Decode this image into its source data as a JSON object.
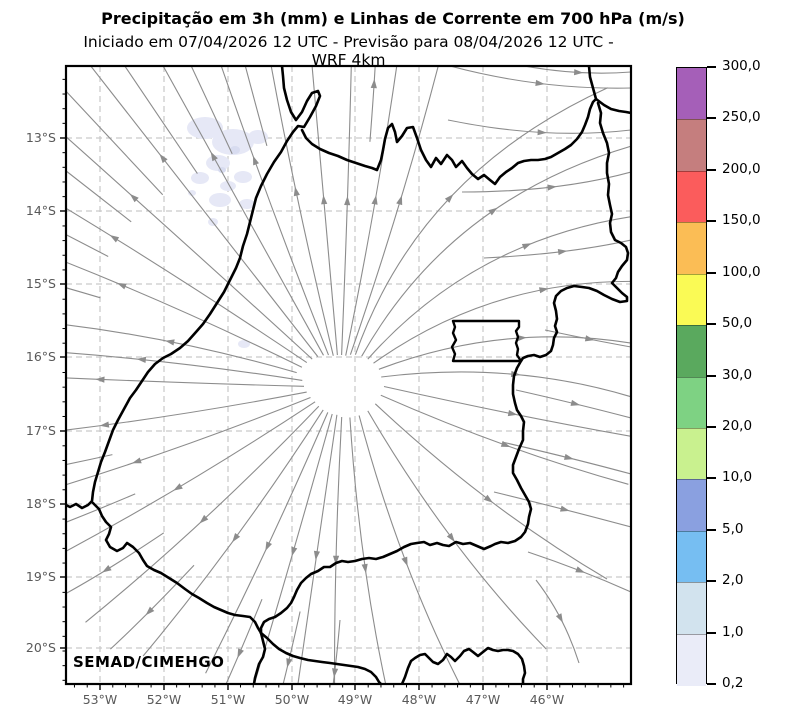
{
  "header": {
    "title": "Precipitação em 3h (mm) e Linhas de Corrente em 700 hPa (m/s)",
    "subtitle": "Iniciado em 07/04/2026 12 UTC - Previsão para 08/04/2026 12 UTC - WRF 4km"
  },
  "map": {
    "watermark": "SEMAD/CIMEHGO",
    "lat_tick_labels": [
      "13°S",
      "14°S",
      "15°S",
      "16°S",
      "17°S",
      "18°S",
      "19°S",
      "20°S"
    ],
    "lon_tick_labels": [
      "53°W",
      "52°W",
      "51°W",
      "50°W",
      "49°W",
      "48°W",
      "47°W",
      "46°W"
    ],
    "colors": {
      "state_border": "#000000",
      "streamline": "#8c8c8c",
      "grid": "#c9c9c9",
      "precip_patch_light": "#e6e8f6",
      "precip_patch_dot": "#d8dcf0",
      "tick_label": "#595959",
      "background": "#ffffff"
    }
  },
  "colorbar": {
    "tick_labels_top_to_bottom": [
      "300,0",
      "250,0",
      "200,0",
      "150,0",
      "100,0",
      "50,0",
      "30,0",
      "20,0",
      "10,0",
      "5,0",
      "2,0",
      "1,0",
      "0,2"
    ],
    "segment_colors_top_to_bottom": [
      "#a55fb8",
      "#c57e7e",
      "#fb5c5c",
      "#fbbd55",
      "#fafa55",
      "#5aa95e",
      "#7ed283",
      "#c9f18f",
      "#8aa0e0",
      "#76bef2",
      "#d2e3ee",
      "#eaecf8"
    ]
  },
  "chart_data": {
    "type": "map",
    "title": "Precipitação em 3h (mm) e Linhas de Corrente em 700 hPa (m/s)",
    "subtitle": "Iniciado em 07/04/2026 12 UTC - Previsão para 08/04/2026 12 UTC - WRF 4km",
    "xlabel_ticks_deg_W": [
      53,
      52,
      51,
      50,
      49,
      48,
      47,
      46
    ],
    "ylabel_ticks_deg_S": [
      13,
      14,
      15,
      16,
      17,
      18,
      19,
      20
    ],
    "colorbar_levels_mm": [
      0.2,
      1.0,
      2.0,
      5.0,
      10.0,
      20.0,
      30.0,
      50.0,
      100.0,
      150.0,
      200.0,
      250.0,
      300.0
    ],
    "precipitation": "Faint 0.2–1.0 mm patches over the northwest of the domain, near 51°–52.5°W / 13°–14.5°S",
    "streamlines_700hPa": "Divergent (anticyclonic outflow) center near 50.2°W / 16.4°S; flow radiates NW over the west, N over the center, turns E over the northeast/east and S–SE over the south of the domain",
    "grid": "dashed 1° graticule",
    "legend_position": "right vertical colorbar"
  }
}
